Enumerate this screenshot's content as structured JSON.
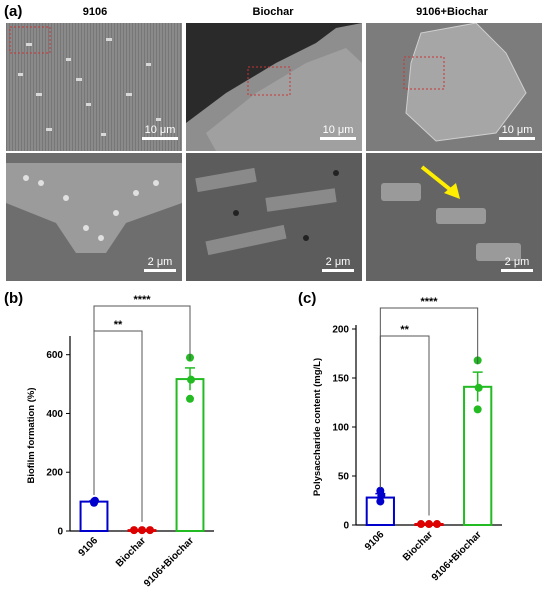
{
  "figure": {
    "label_a": "(a)",
    "label_b": "(b)",
    "label_c": "(c)",
    "columns": [
      "9106",
      "Biochar",
      "9106+Biochar"
    ],
    "scalebars_top": [
      "10 μm",
      "10 μm",
      "10 μm"
    ],
    "scalebars_bottom": [
      "2 μm",
      "2 μm",
      "2 μm"
    ]
  },
  "chart_data": [
    {
      "type": "bar",
      "panel": "(b)",
      "categories": [
        "9106",
        "Biochar",
        "9106+Biochar"
      ],
      "values": [
        100,
        3,
        517
      ],
      "errors": [
        2,
        1,
        38
      ],
      "points": [
        [
          96,
          103,
          100
        ],
        [
          3,
          3,
          3
        ],
        [
          590,
          515,
          450
        ]
      ],
      "ylabel": "Biofilm formation (%)",
      "ylim": [
        0,
        650
      ],
      "yticks": [
        "0",
        "200",
        "400",
        "600"
      ],
      "ytick_values": [
        0,
        200,
        400,
        600
      ],
      "colors": [
        "#0000cc",
        "#dd0000",
        "#22bb22"
      ],
      "significance": [
        {
          "from": 0,
          "to": 1,
          "label": "**"
        },
        {
          "from": 0,
          "to": 2,
          "label": "****"
        }
      ]
    },
    {
      "type": "bar",
      "panel": "(c)",
      "categories": [
        "9106",
        "Biochar",
        "9106+Biochar"
      ],
      "values": [
        28,
        1,
        141
      ],
      "errors": [
        4,
        0.5,
        15
      ],
      "points": [
        [
          35,
          30,
          24
        ],
        [
          1,
          1,
          1
        ],
        [
          168,
          140,
          118
        ]
      ],
      "ylabel": "Polysaccharide content (mg/L)",
      "ylim": [
        0,
        200
      ],
      "yticks": [
        "0",
        "50",
        "100",
        "150",
        "200"
      ],
      "ytick_values": [
        0,
        50,
        100,
        150,
        200
      ],
      "colors": [
        "#0000cc",
        "#dd0000",
        "#22bb22"
      ],
      "significance": [
        {
          "from": 0,
          "to": 1,
          "label": "**"
        },
        {
          "from": 0,
          "to": 2,
          "label": "****"
        }
      ]
    }
  ]
}
